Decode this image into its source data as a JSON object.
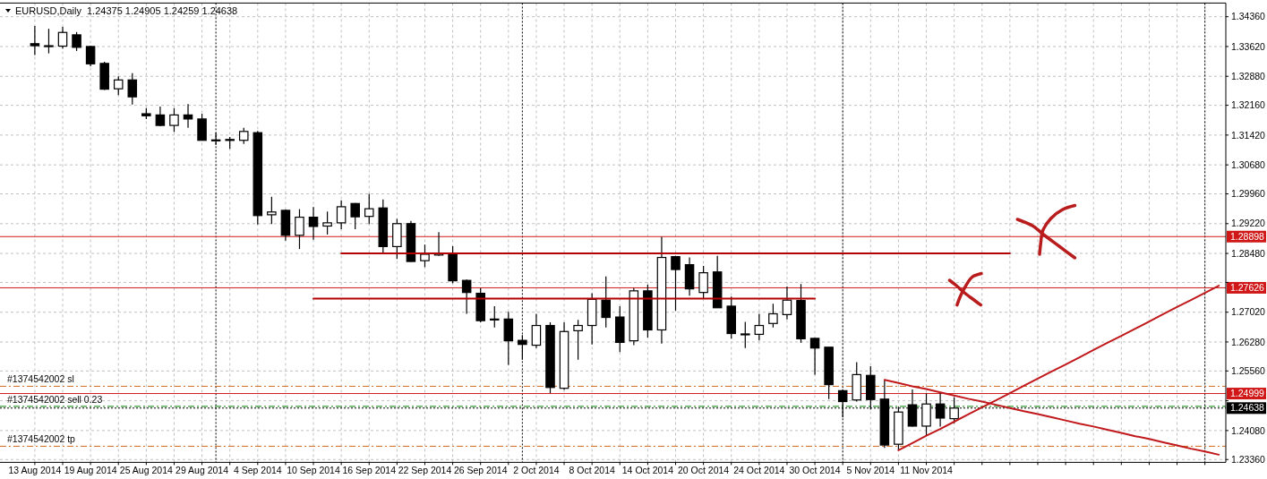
{
  "chart_data": {
    "type": "candlestick",
    "title": "EURUSD,Daily",
    "subtitle": "1.24375 1.24905 1.24259 1.24638",
    "color": "#000000",
    "categories": [
      "13 Aug 2014",
      null,
      null,
      null,
      "19 Aug 2014",
      null,
      null,
      null,
      "25 Aug 2014",
      null,
      null,
      null,
      "29 Aug 2014",
      null,
      null,
      null,
      "4 Sep 2014",
      null,
      null,
      null,
      "10 Sep 2014",
      null,
      null,
      null,
      "16 Sep 2014",
      null,
      null,
      null,
      "22 Sep 2014",
      null,
      null,
      null,
      "26 Sep 2014",
      null,
      null,
      null,
      "2 Oct 2014",
      null,
      null,
      null,
      "8 Oct 2014",
      null,
      null,
      null,
      "14 Oct 2014",
      null,
      null,
      null,
      "20 Oct 2014",
      null,
      null,
      null,
      "24 Oct 2014",
      null,
      null,
      null,
      "30 Oct 2014",
      null,
      null,
      null,
      "5 Nov 2014",
      null,
      null,
      null,
      "11 Nov 2014",
      null,
      null,
      null,
      null,
      null,
      null,
      null,
      null,
      null,
      null,
      null,
      null,
      null,
      null,
      null,
      null,
      null,
      null,
      null,
      null,
      null
    ],
    "ohlc": [
      [
        1.3369,
        1.3413,
        1.3341,
        1.3364
      ],
      [
        1.3364,
        1.3406,
        1.3345,
        1.3364
      ],
      [
        1.3363,
        1.3411,
        1.3357,
        1.3397
      ],
      [
        1.3391,
        1.3398,
        1.3351,
        1.336
      ],
      [
        1.3362,
        1.3364,
        1.3313,
        1.3319
      ],
      [
        1.332,
        1.3324,
        1.3254,
        1.3256
      ],
      [
        1.3257,
        1.3288,
        1.3241,
        1.3279
      ],
      [
        1.3279,
        1.3296,
        1.3218,
        1.3237
      ],
      [
        1.3195,
        1.3209,
        1.3182,
        1.319
      ],
      [
        1.3192,
        1.3213,
        1.3164,
        1.3166
      ],
      [
        1.3166,
        1.3209,
        1.315,
        1.3192
      ],
      [
        1.3192,
        1.3219,
        1.316,
        1.3182
      ],
      [
        1.3182,
        1.3195,
        1.3129,
        1.3129
      ],
      [
        1.313,
        1.3148,
        1.3118,
        1.3129
      ],
      [
        1.3131,
        1.3137,
        1.3108,
        1.3129
      ],
      [
        1.3129,
        1.316,
        1.312,
        1.3151
      ],
      [
        1.3148,
        1.3152,
        1.292,
        1.2942
      ],
      [
        1.2944,
        1.2989,
        1.2921,
        1.2951
      ],
      [
        1.2955,
        1.2957,
        1.288,
        1.2893
      ],
      [
        1.2893,
        1.2958,
        1.2859,
        1.2938
      ],
      [
        1.2938,
        1.2963,
        1.2882,
        1.2915
      ],
      [
        1.2916,
        1.2952,
        1.2895,
        1.2924
      ],
      [
        1.2924,
        1.298,
        1.2908,
        1.2964
      ],
      [
        1.2972,
        1.2973,
        1.2908,
        1.2939
      ],
      [
        1.294,
        1.2996,
        1.2921,
        1.2959
      ],
      [
        1.2961,
        1.2982,
        1.2848,
        1.2865
      ],
      [
        1.2865,
        1.2934,
        1.2834,
        1.2922
      ],
      [
        1.2922,
        1.2929,
        1.2827,
        1.2828
      ],
      [
        1.283,
        1.287,
        1.2814,
        1.2846
      ],
      [
        1.2844,
        1.2901,
        1.2842,
        1.2848
      ],
      [
        1.2846,
        1.2866,
        1.2774,
        1.278
      ],
      [
        1.2781,
        1.2783,
        1.2698,
        1.2751
      ],
      [
        1.2749,
        1.2762,
        1.2677,
        1.2681
      ],
      [
        1.2685,
        1.2717,
        1.2664,
        1.2683
      ],
      [
        1.2685,
        1.2703,
        1.2571,
        1.2631
      ],
      [
        1.2632,
        1.2645,
        1.2584,
        1.2622
      ],
      [
        1.262,
        1.2698,
        1.2613,
        1.2669
      ],
      [
        1.2669,
        1.2677,
        1.2501,
        1.2515
      ],
      [
        1.2513,
        1.2677,
        1.2509,
        1.2654
      ],
      [
        1.2656,
        1.2683,
        1.2584,
        1.2669
      ],
      [
        1.2669,
        1.2749,
        1.2622,
        1.2734
      ],
      [
        1.2732,
        1.2791,
        1.2664,
        1.2689
      ],
      [
        1.269,
        1.2717,
        1.2603,
        1.2627
      ],
      [
        1.2631,
        1.2762,
        1.262,
        1.2755
      ],
      [
        1.2755,
        1.277,
        1.2639,
        1.2658
      ],
      [
        1.2658,
        1.2889,
        1.2624,
        1.2838
      ],
      [
        1.284,
        1.2842,
        1.2706,
        1.2808
      ],
      [
        1.282,
        1.2838,
        1.2743,
        1.276
      ],
      [
        1.2751,
        1.2817,
        1.2736,
        1.28
      ],
      [
        1.2802,
        1.2842,
        1.2713,
        1.2713
      ],
      [
        1.2717,
        1.2741,
        1.2636,
        1.2649
      ],
      [
        1.2648,
        1.2678,
        1.2613,
        1.2647
      ],
      [
        1.2647,
        1.2698,
        1.2632,
        1.2669
      ],
      [
        1.2674,
        1.2723,
        1.2664,
        1.2698
      ],
      [
        1.2696,
        1.2766,
        1.2684,
        1.2732
      ],
      [
        1.2731,
        1.2772,
        1.2626,
        1.2636
      ],
      [
        1.2637,
        1.2638,
        1.2547,
        1.2613
      ],
      [
        1.2615,
        1.2615,
        1.2486,
        1.2522
      ],
      [
        1.2507,
        1.251,
        1.2441,
        1.248
      ],
      [
        1.2484,
        1.2578,
        1.248,
        1.2547
      ],
      [
        1.2545,
        1.2568,
        1.246,
        1.2485
      ],
      [
        1.2486,
        1.2534,
        1.2365,
        1.2372
      ],
      [
        1.2374,
        1.2467,
        1.2359,
        1.2454
      ],
      [
        1.2472,
        1.251,
        1.2418,
        1.2419
      ],
      [
        1.2419,
        1.25,
        1.2395,
        1.2474
      ],
      [
        1.2474,
        1.2501,
        1.2418,
        1.2439
      ],
      [
        1.24375,
        1.24905,
        1.24259,
        1.24638
      ],
      null,
      null,
      null,
      null,
      null,
      null,
      null,
      null,
      null,
      null,
      null,
      null,
      null,
      null,
      null,
      null,
      null,
      null,
      null
    ],
    "series": [
      {
        "type": "line",
        "color": "#b30000",
        "values": [
          null,
          null,
          null,
          null,
          null,
          null,
          null,
          null,
          null,
          null,
          null,
          null,
          null,
          null,
          null,
          null,
          null,
          null,
          null,
          null,
          null,
          null,
          1.2848,
          1.2848,
          1.2848,
          1.2848,
          1.2848,
          1.2848,
          1.2848,
          1.2848,
          1.2848,
          1.2848,
          1.2848,
          1.2848,
          1.2848,
          1.2848,
          1.2848,
          1.2848,
          1.2848,
          1.2848,
          1.2848,
          1.2848,
          1.2848,
          1.2848,
          1.2848,
          1.2848,
          1.2848,
          1.2848,
          1.2848,
          1.2848,
          1.2848,
          1.2848,
          1.2848,
          1.2848,
          1.2848,
          1.2848,
          1.2848,
          1.2848,
          1.2848,
          1.2848,
          1.2848,
          1.2848,
          1.2848,
          1.2848,
          1.2848,
          1.2848,
          1.2848,
          1.2848,
          1.2848,
          1.2848,
          1.2848,
          null,
          null,
          null,
          null,
          null,
          null,
          null,
          null,
          null,
          null,
          null,
          null,
          null,
          null,
          null
        ]
      },
      {
        "type": "line",
        "color": "#b30000",
        "values": [
          null,
          null,
          null,
          null,
          null,
          null,
          null,
          null,
          null,
          null,
          null,
          null,
          null,
          null,
          null,
          null,
          null,
          null,
          null,
          null,
          1.2736,
          1.2736,
          1.2736,
          1.2736,
          1.2736,
          1.2736,
          1.2736,
          1.2736,
          1.2736,
          1.2736,
          1.2736,
          1.2736,
          1.2736,
          1.2736,
          1.2736,
          1.2736,
          1.2736,
          1.2736,
          1.2736,
          1.2736,
          1.2736,
          1.2736,
          1.2736,
          1.2736,
          1.2736,
          1.2736,
          1.2736,
          1.2736,
          1.2736,
          1.2736,
          1.2736,
          1.2736,
          1.2736,
          1.2736,
          1.2736,
          1.2736,
          1.2736,
          null,
          null,
          null,
          null,
          null,
          null,
          null,
          null,
          null,
          null,
          null,
          null,
          null,
          null,
          null,
          null,
          null,
          null,
          null,
          null,
          null,
          null,
          null,
          null,
          null,
          null,
          null,
          null,
          null
        ]
      },
      {
        "type": "line",
        "color": "#c0181b",
        "values": [
          null,
          null,
          null,
          null,
          null,
          null,
          null,
          null,
          null,
          null,
          null,
          null,
          null,
          null,
          null,
          null,
          null,
          null,
          null,
          null,
          null,
          null,
          null,
          null,
          null,
          null,
          null,
          null,
          null,
          null,
          null,
          null,
          null,
          null,
          null,
          null,
          null,
          null,
          null,
          null,
          null,
          null,
          null,
          null,
          null,
          null,
          null,
          null,
          null,
          null,
          null,
          null,
          null,
          null,
          null,
          null,
          null,
          null,
          null,
          null,
          null,
          1.2534,
          1.2526,
          1.2518,
          1.2511,
          1.2503,
          1.2495,
          1.2487,
          1.248,
          1.2472,
          1.2464,
          1.2456,
          1.2449,
          1.2441,
          1.2433,
          1.2425,
          1.2418,
          1.241,
          1.2402,
          1.2394,
          1.2387,
          1.2379,
          1.2371,
          1.2363,
          1.2356,
          1.2348
        ]
      },
      {
        "type": "line",
        "color": "#c0181b",
        "values": [
          null,
          null,
          null,
          null,
          null,
          null,
          null,
          null,
          null,
          null,
          null,
          null,
          null,
          null,
          null,
          null,
          null,
          null,
          null,
          null,
          null,
          null,
          null,
          null,
          null,
          null,
          null,
          null,
          null,
          null,
          null,
          null,
          null,
          null,
          null,
          null,
          null,
          null,
          null,
          null,
          null,
          null,
          null,
          null,
          null,
          null,
          null,
          null,
          null,
          null,
          null,
          null,
          null,
          null,
          null,
          null,
          null,
          null,
          null,
          null,
          null,
          null,
          1.2359,
          1.2377,
          1.2395,
          1.2412,
          1.243,
          1.2448,
          1.2466,
          1.2483,
          1.2501,
          1.2519,
          1.2537,
          1.2555,
          1.2572,
          1.259,
          1.2608,
          1.2626,
          1.2643,
          1.2661,
          1.2679,
          1.2697,
          1.2715,
          1.2732,
          1.275,
          1.2768
        ]
      }
    ],
    "ylim": [
      1.2329,
      1.347
    ],
    "yticks": [
      {
        "value": 1.3436,
        "label": "1.34360"
      },
      {
        "value": 1.3362,
        "label": "1.33620"
      },
      {
        "value": 1.3288,
        "label": "1.32880"
      },
      {
        "value": 1.3216,
        "label": "1.32160"
      },
      {
        "value": 1.3142,
        "label": "1.31420"
      },
      {
        "value": 1.3068,
        "label": "1.30680"
      },
      {
        "value": 1.2996,
        "label": "1.29960"
      },
      {
        "value": 1.2922,
        "label": "1.29220"
      },
      {
        "value": 1.2848,
        "label": "1.28480"
      },
      {
        "value": 1.2776,
        "label": null
      },
      {
        "value": 1.2702,
        "label": "1.27020"
      },
      {
        "value": 1.2628,
        "label": "1.26280"
      },
      {
        "value": 1.2556,
        "label": "1.25560"
      },
      {
        "value": 1.2482,
        "label": null
      },
      {
        "value": 1.2408,
        "label": "1.24080"
      },
      {
        "value": 1.2336,
        "label": "1.23360"
      }
    ],
    "grid": true,
    "ref_lines": [
      {
        "axis": "y",
        "value": 1.28898,
        "label": "1.28898",
        "color": "#d01818",
        "line_style": "solid"
      },
      {
        "axis": "y",
        "value": 1.27626,
        "label": "1.27626",
        "color": "#d01818",
        "line_style": "solid"
      },
      {
        "axis": "y",
        "value": 1.24999,
        "label": "1.24999",
        "color": "#d01818",
        "line_style": "solid"
      },
      {
        "axis": "y",
        "value": 1.24638,
        "label": "1.24638",
        "color": "#000000",
        "line_style": "dotted"
      },
      {
        "axis": "y",
        "value": 1.2518,
        "label": "#1374542002 sl",
        "color": "#d2691e",
        "line_style": "dashed"
      },
      {
        "axis": "y",
        "value": 1.2468,
        "label": "#1374542002 sell 0.23",
        "color": "#008000",
        "line_style": "dashed"
      },
      {
        "axis": "y",
        "value": 1.2369,
        "label": "#1374542002 tp",
        "color": "#d2691e",
        "line_style": "dashed"
      }
    ]
  }
}
